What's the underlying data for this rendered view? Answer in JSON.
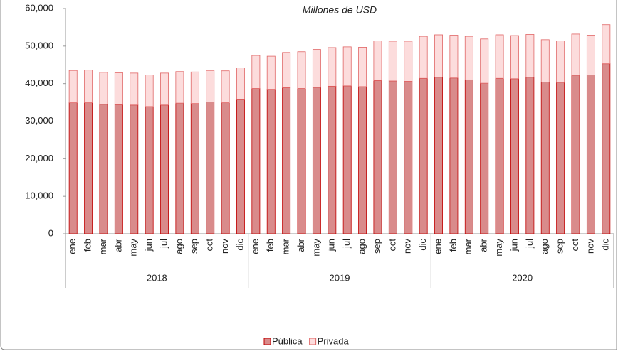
{
  "chart_data": {
    "type": "stacked_bar",
    "title": "Millones de USD",
    "categories": [
      "ene",
      "feb",
      "mar",
      "abr",
      "may",
      "jun",
      "jul",
      "ago",
      "sep",
      "oct",
      "nov",
      "dic",
      "ene",
      "feb",
      "mar",
      "abr",
      "may",
      "jun",
      "jul",
      "ago",
      "sep",
      "oct",
      "nov",
      "dic",
      "ene",
      "feb",
      "mar",
      "abr",
      "may",
      "jun",
      "jul",
      "ago",
      "sep",
      "oct",
      "nov",
      "dic"
    ],
    "category_groups": [
      "2018",
      "2019",
      "2020"
    ],
    "series": [
      {
        "name": "Pública",
        "color": "#d98b8b",
        "edge": "#c00000",
        "values": [
          34900,
          34900,
          34500,
          34400,
          34300,
          33900,
          34300,
          34800,
          34700,
          35100,
          34900,
          35700,
          38700,
          38500,
          38900,
          38700,
          39000,
          39300,
          39400,
          39200,
          40800,
          40700,
          40600,
          41400,
          41700,
          41500,
          41000,
          40100,
          41400,
          41300,
          41700,
          40400,
          40300,
          42200,
          42300,
          45300
        ]
      },
      {
        "name": "Privada",
        "color": "#fcdcdc",
        "edge": "#e06666",
        "values": [
          8600,
          8700,
          8500,
          8500,
          8500,
          8400,
          8500,
          8400,
          8400,
          8400,
          8500,
          8500,
          8800,
          8800,
          9400,
          9800,
          10100,
          10300,
          10400,
          10500,
          10600,
          10600,
          10700,
          11200,
          11300,
          11400,
          11600,
          11800,
          11600,
          11500,
          11400,
          11300,
          11100,
          11000,
          10600,
          10400
        ]
      }
    ],
    "ylim": [
      0,
      60000
    ],
    "yticks": [
      0,
      {
        "value": 10000,
        "label": "10,000"
      },
      {
        "value": 20000,
        "label": "20,000"
      },
      {
        "value": 30000,
        "label": "30,000"
      },
      {
        "value": 40000,
        "label": "40,000"
      },
      {
        "value": 50000,
        "label": "50,000"
      },
      {
        "value": 60000,
        "label": "60,000"
      }
    ],
    "legend": "bottom"
  }
}
